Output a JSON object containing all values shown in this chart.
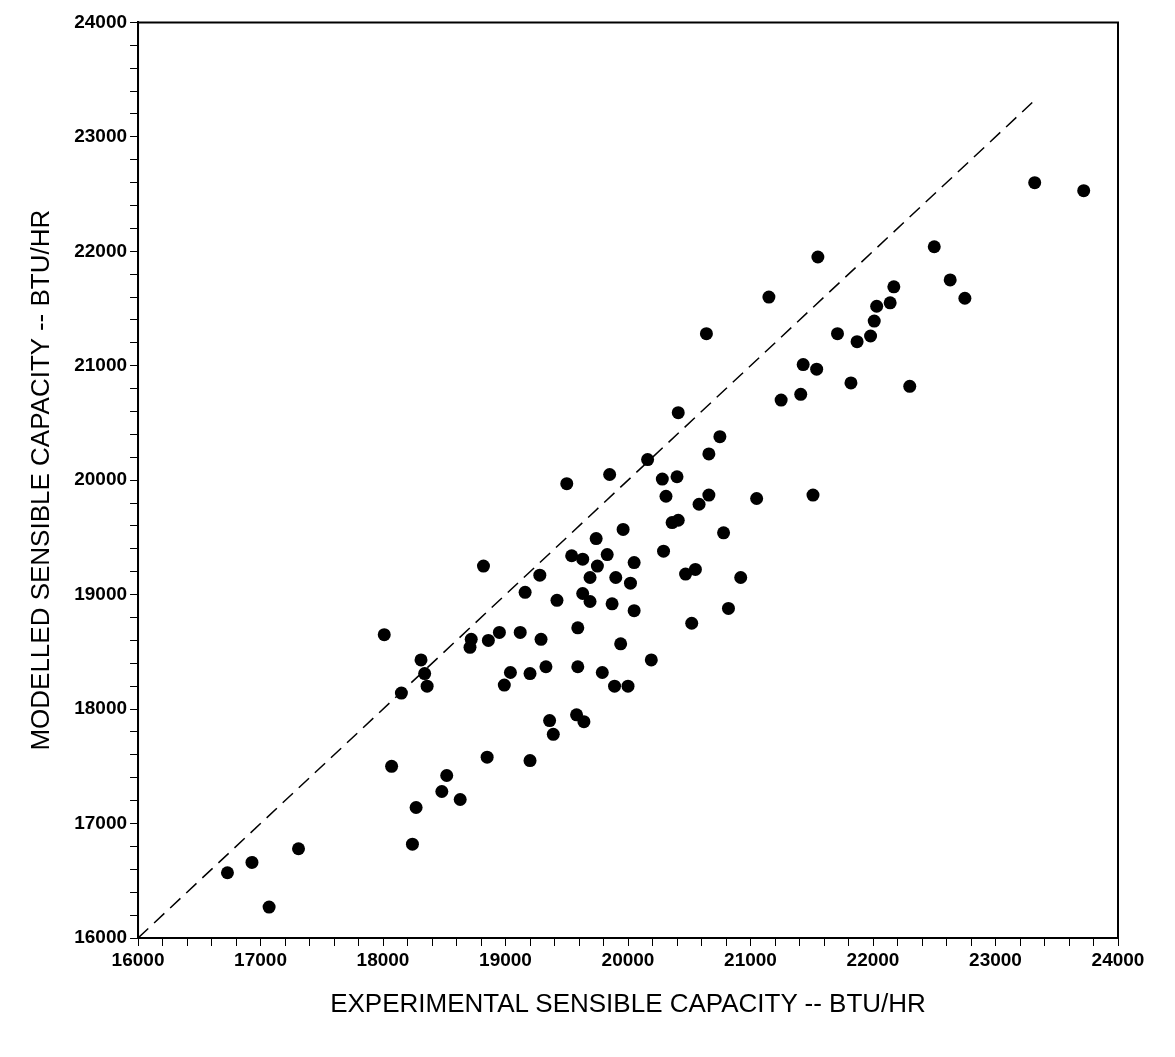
{
  "chart_data": {
    "type": "scatter",
    "xlabel": "EXPERIMENTAL SENSIBLE CAPACITY -- BTU/HR",
    "ylabel": "MODELLED SENSIBLE CAPACITY -- BTU/HR",
    "xlim": [
      16000,
      24000
    ],
    "ylim": [
      16000,
      24000
    ],
    "xticks": [
      16000,
      {
        "value": 16200,
        "label": null
      },
      {
        "value": 16400,
        "label": null
      },
      {
        "value": 16600,
        "label": null
      },
      {
        "value": 16800,
        "label": null
      },
      17000,
      {
        "value": 17200,
        "label": null
      },
      {
        "value": 17400,
        "label": null
      },
      {
        "value": 17600,
        "label": null
      },
      {
        "value": 17800,
        "label": null
      },
      18000,
      {
        "value": 18200,
        "label": null
      },
      {
        "value": 18400,
        "label": null
      },
      {
        "value": 18600,
        "label": null
      },
      {
        "value": 18800,
        "label": null
      },
      19000,
      {
        "value": 19200,
        "label": null
      },
      {
        "value": 19400,
        "label": null
      },
      {
        "value": 19600,
        "label": null
      },
      {
        "value": 19800,
        "label": null
      },
      20000,
      {
        "value": 20200,
        "label": null
      },
      {
        "value": 20400,
        "label": null
      },
      {
        "value": 20600,
        "label": null
      },
      {
        "value": 20800,
        "label": null
      },
      21000,
      {
        "value": 21200,
        "label": null
      },
      {
        "value": 21400,
        "label": null
      },
      {
        "value": 21600,
        "label": null
      },
      {
        "value": 21800,
        "label": null
      },
      22000,
      {
        "value": 22200,
        "label": null
      },
      {
        "value": 22400,
        "label": null
      },
      {
        "value": 22600,
        "label": null
      },
      {
        "value": 22800,
        "label": null
      },
      23000,
      {
        "value": 23200,
        "label": null
      },
      {
        "value": 23400,
        "label": null
      },
      {
        "value": 23600,
        "label": null
      },
      {
        "value": 23800,
        "label": null
      },
      24000
    ],
    "yticks": [
      16000,
      {
        "value": 16200,
        "label": null
      },
      {
        "value": 16400,
        "label": null
      },
      {
        "value": 16600,
        "label": null
      },
      {
        "value": 16800,
        "label": null
      },
      17000,
      {
        "value": 17200,
        "label": null
      },
      {
        "value": 17400,
        "label": null
      },
      {
        "value": 17600,
        "label": null
      },
      {
        "value": 17800,
        "label": null
      },
      18000,
      {
        "value": 18200,
        "label": null
      },
      {
        "value": 18400,
        "label": null
      },
      {
        "value": 18600,
        "label": null
      },
      {
        "value": 18800,
        "label": null
      },
      19000,
      {
        "value": 19200,
        "label": null
      },
      {
        "value": 19400,
        "label": null
      },
      {
        "value": 19600,
        "label": null
      },
      {
        "value": 19800,
        "label": null
      },
      20000,
      {
        "value": 20200,
        "label": null
      },
      {
        "value": 20400,
        "label": null
      },
      {
        "value": 20600,
        "label": null
      },
      {
        "value": 20800,
        "label": null
      },
      21000,
      {
        "value": 21200,
        "label": null
      },
      {
        "value": 21400,
        "label": null
      },
      {
        "value": 21600,
        "label": null
      },
      {
        "value": 21800,
        "label": null
      },
      22000,
      {
        "value": 22200,
        "label": null
      },
      {
        "value": 22400,
        "label": null
      },
      {
        "value": 22600,
        "label": null
      },
      {
        "value": 22800,
        "label": null
      },
      23000,
      {
        "value": 23200,
        "label": null
      },
      {
        "value": 23400,
        "label": null
      },
      {
        "value": 23600,
        "label": null
      },
      {
        "value": 23800,
        "label": null
      },
      24000
    ],
    "grid": false,
    "legend": false,
    "marker": "circle",
    "series": [
      {
        "type": "scatter",
        "color": "#000000",
        "x": [
          16730,
          16930,
          17070,
          17310,
          18010,
          18150,
          18070,
          18240,
          18270,
          18310,
          18340,
          18360,
          18520,
          18480,
          18630,
          18720,
          18710,
          18860,
          18950,
          19120,
          19160,
          18820,
          19040,
          18990,
          19200,
          18850,
          19200,
          19280,
          20410,
          20160,
          19850,
          19500,
          20280,
          20400,
          20310,
          20660,
          20580,
          20750,
          20660,
          21050,
          21510,
          21250,
          21410,
          20360,
          20410,
          19960,
          19740,
          20780,
          20290,
          19540,
          19630,
          19830,
          19750,
          20050,
          19690,
          19900,
          20020,
          20470,
          20550,
          20920,
          19420,
          19630,
          19690,
          19870,
          20050,
          20820,
          20520,
          19590,
          19290,
          19940,
          20190,
          19330,
          19590,
          19790,
          19890,
          20000,
          19360,
          19580,
          19640,
          19390,
          23320,
          23720,
          22500,
          21550,
          21150,
          20640,
          22170,
          22140,
          22030,
          22010,
          21980,
          21870,
          21710,
          22630,
          22750,
          21430,
          21540,
          21820,
          22300
        ],
        "values": [
          16570,
          16660,
          16270,
          16780,
          18650,
          18140,
          17500,
          16820,
          17140,
          18430,
          18310,
          18200,
          17420,
          17280,
          17210,
          18610,
          18540,
          18600,
          18670,
          18670,
          19020,
          19250,
          18320,
          18210,
          18310,
          17580,
          17550,
          19170,
          20590,
          20180,
          20050,
          19970,
          20010,
          20030,
          19860,
          19870,
          19790,
          20380,
          20230,
          19840,
          19870,
          20700,
          20750,
          19630,
          19650,
          19570,
          19490,
          19540,
          19380,
          19340,
          19310,
          19350,
          19250,
          19280,
          19150,
          19150,
          19100,
          19180,
          19220,
          19150,
          18950,
          19010,
          18940,
          18920,
          18860,
          18880,
          18750,
          18710,
          18610,
          18570,
          18430,
          18370,
          18370,
          18320,
          18200,
          18200,
          17900,
          17950,
          17890,
          17780,
          22600,
          22530,
          22040,
          21950,
          21600,
          21280,
          21690,
          21550,
          21520,
          21390,
          21260,
          21210,
          21280,
          21750,
          21590,
          21010,
          20970,
          20850,
          20820
        ]
      },
      {
        "type": "line",
        "color": "#000000",
        "line_style": "dashed",
        "marker": "none",
        "x": [
          16000,
          23300
        ],
        "values": [
          16000,
          23300
        ]
      }
    ]
  }
}
